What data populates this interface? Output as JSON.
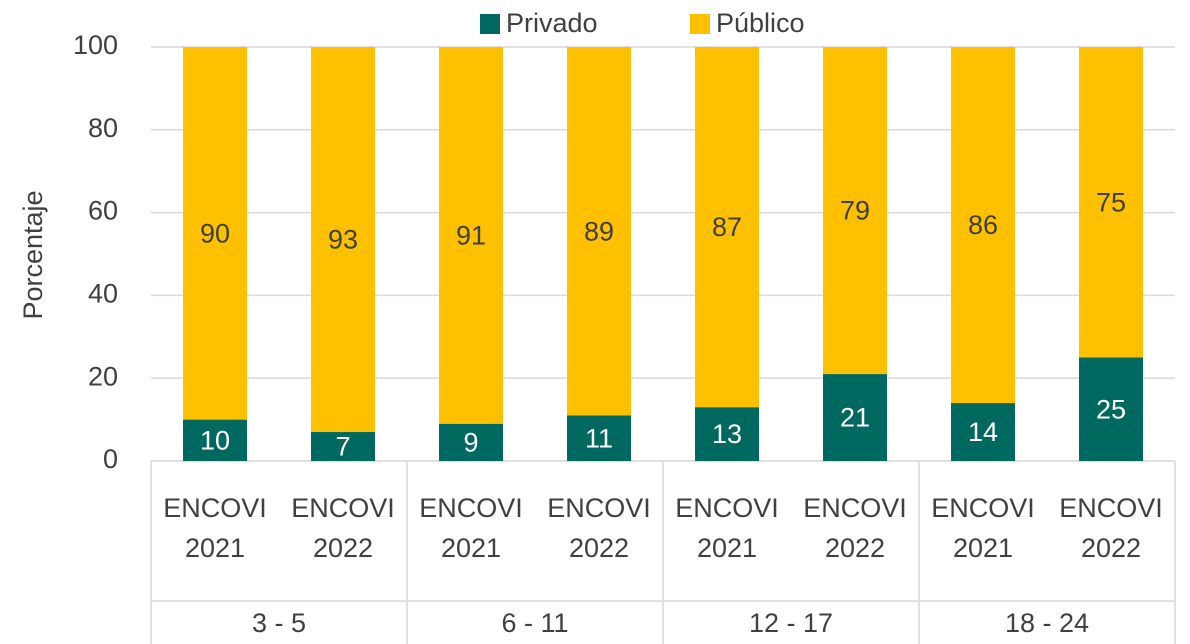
{
  "chart_data": {
    "type": "stacked_bar",
    "y_label": "Porcentaje",
    "categories": [
      "ENCOVI 2021",
      "ENCOVI 2022",
      "ENCOVI 2021",
      "ENCOVI 2022",
      "ENCOVI 2021",
      "ENCOVI 2022",
      "ENCOVI 2021",
      "ENCOVI 2022"
    ],
    "groups": [
      "3 - 5",
      "6 - 11",
      "12 - 17",
      "18 - 24"
    ],
    "series": [
      {
        "name": "Privado",
        "color": "#00695f",
        "values": [
          10,
          7,
          9,
          11,
          13,
          21,
          14,
          25
        ]
      },
      {
        "name": "Público",
        "color": "#ffc000",
        "values": [
          90,
          93,
          91,
          89,
          87,
          79,
          86,
          75
        ]
      }
    ],
    "ylim": [
      0,
      100
    ],
    "yticks": [
      0,
      20,
      40,
      60,
      80,
      100
    ],
    "grid": true,
    "legend": "top"
  }
}
